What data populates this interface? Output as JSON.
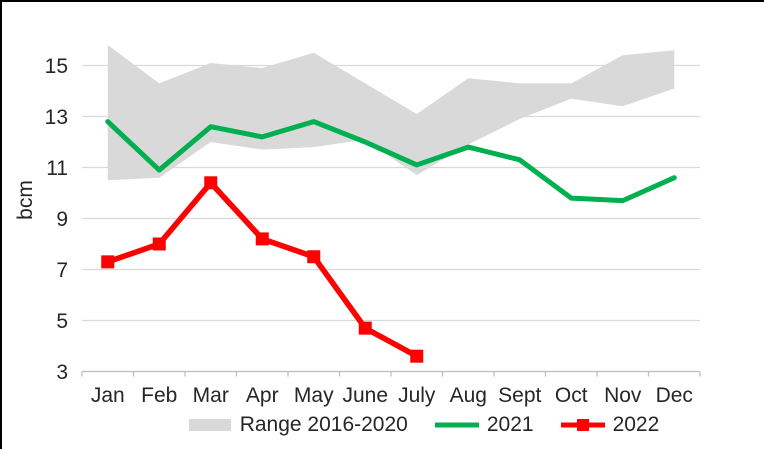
{
  "chart_data": {
    "type": "line",
    "title": "",
    "ylabel": "bcm",
    "xlabel": "",
    "categories": [
      "Jan",
      "Feb",
      "Mar",
      "Apr",
      "May",
      "June",
      "July",
      "Aug",
      "Sept",
      "Oct",
      "Nov",
      "Dec"
    ],
    "yticks": [
      3,
      5,
      7,
      9,
      11,
      13,
      15
    ],
    "ylim": [
      3,
      16.3
    ],
    "grid": true,
    "legend_position": "bottom",
    "band": {
      "name": "Range 2016-2020",
      "color": "#d9d9d9",
      "lower": [
        10.5,
        10.6,
        12.0,
        11.7,
        11.8,
        12.1,
        10.7,
        11.9,
        12.9,
        13.7,
        13.4,
        14.1
      ],
      "upper": [
        15.8,
        14.3,
        15.1,
        14.9,
        15.5,
        14.3,
        13.1,
        14.5,
        14.3,
        14.3,
        15.4,
        15.6
      ]
    },
    "series": [
      {
        "name": "2021",
        "color": "#00b050",
        "marker": "none",
        "values": [
          12.8,
          10.9,
          12.6,
          12.2,
          12.8,
          12.0,
          11.1,
          11.8,
          11.3,
          9.8,
          9.7,
          10.6
        ]
      },
      {
        "name": "2022",
        "color": "#ff0000",
        "marker": "square",
        "values": [
          7.3,
          8.0,
          10.4,
          8.2,
          7.5,
          4.7,
          3.6,
          null,
          null,
          null,
          null,
          null
        ]
      }
    ],
    "grid_color": "#d9d9d9",
    "axis_color": "#bfbfbf",
    "text_color": "#262626",
    "frame_border_color": "#000000"
  }
}
